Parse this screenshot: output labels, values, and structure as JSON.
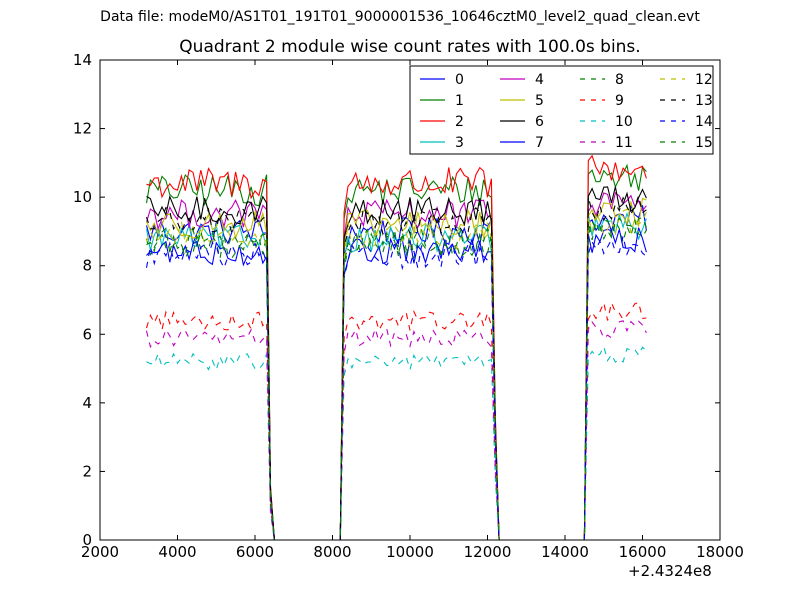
{
  "supertitle": "Data file: modeM0/AS1T01_191T01_9000001536_10646cztM0_level2_quad_clean.evt",
  "chart_data": {
    "type": "line",
    "title": "Quadrant 2 module wise count rates with 100.0s bins.",
    "xlabel": "",
    "ylabel": "",
    "x_offset_label": "+2.4324e8",
    "xlim": [
      2000,
      18000
    ],
    "ylim": [
      0,
      14
    ],
    "x_ticks": [
      "2000",
      "4000",
      "6000",
      "8000",
      "10000",
      "12000",
      "14000",
      "16000",
      "18000"
    ],
    "y_ticks": [
      "0",
      "2",
      "4",
      "6",
      "8",
      "10",
      "12",
      "14"
    ],
    "grid": false,
    "legend_placement": "top-right",
    "legend_columns": 4,
    "x_bin_start": 3200,
    "x_bin_step": 100,
    "x_end": 16100,
    "segments": [
      {
        "start": 3200,
        "end": 6300,
        "fall_end": 6500
      },
      {
        "rise_start": 8200,
        "start": 8400,
        "end": 12100,
        "fall_end": 12300
      },
      {
        "rise_start": 14500,
        "start": 14600,
        "end": 16100
      }
    ],
    "series": [
      {
        "name": "0",
        "color": "#0000ff",
        "dash": false,
        "level": 9.0
      },
      {
        "name": "1",
        "color": "#008000",
        "dash": false,
        "level": 10.2
      },
      {
        "name": "2",
        "color": "#ff0000",
        "dash": false,
        "level": 10.4
      },
      {
        "name": "3",
        "color": "#00bfbf",
        "dash": false,
        "level": 8.8
      },
      {
        "name": "4",
        "color": "#bf00bf",
        "dash": false,
        "level": 9.5
      },
      {
        "name": "5",
        "color": "#bfbf00",
        "dash": false,
        "level": 9.2
      },
      {
        "name": "6",
        "color": "#000000",
        "dash": false,
        "level": 9.6
      },
      {
        "name": "7",
        "color": "#0000ff",
        "dash": false,
        "level": 8.4
      },
      {
        "name": "8",
        "color": "#008000",
        "dash": true,
        "level": 8.6
      },
      {
        "name": "9",
        "color": "#ff0000",
        "dash": true,
        "level": 6.4
      },
      {
        "name": "10",
        "color": "#00bfbf",
        "dash": true,
        "level": 5.2
      },
      {
        "name": "11",
        "color": "#bf00bf",
        "dash": true,
        "level": 5.9
      },
      {
        "name": "12",
        "color": "#bfbf00",
        "dash": true,
        "level": 8.9
      },
      {
        "name": "13",
        "color": "#000000",
        "dash": true,
        "level": 9.3
      },
      {
        "name": "14",
        "color": "#0000ff",
        "dash": true,
        "level": 8.3
      },
      {
        "name": "15",
        "color": "#008000",
        "dash": true,
        "level": 8.7
      }
    ]
  }
}
